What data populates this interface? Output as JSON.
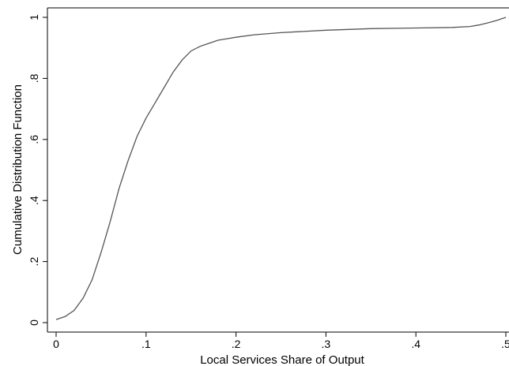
{
  "chart_data": {
    "type": "line",
    "title": "",
    "xlabel": "Local Services Share of Output",
    "ylabel": "Cumulative Distribution Function",
    "xlim": [
      0,
      0.5
    ],
    "ylim": [
      0,
      1
    ],
    "xticks": [
      0,
      0.1,
      0.2,
      0.3,
      0.4,
      0.5
    ],
    "xtick_labels": [
      "0",
      ".1",
      ".2",
      ".3",
      ".4",
      ".5"
    ],
    "yticks": [
      0,
      0.2,
      0.4,
      0.6,
      0.8,
      1
    ],
    "ytick_labels": [
      "0",
      ".2",
      ".4",
      ".6",
      ".8",
      "1"
    ],
    "grid": false,
    "series": [
      {
        "color": "#555555",
        "x": [
          0.0,
          0.01,
          0.02,
          0.03,
          0.04,
          0.05,
          0.06,
          0.07,
          0.08,
          0.09,
          0.1,
          0.11,
          0.12,
          0.13,
          0.14,
          0.15,
          0.16,
          0.17,
          0.18,
          0.19,
          0.2,
          0.22,
          0.25,
          0.3,
          0.35,
          0.4,
          0.44,
          0.46,
          0.47,
          0.48,
          0.49,
          0.5
        ],
        "y": [
          0.01,
          0.02,
          0.04,
          0.08,
          0.14,
          0.23,
          0.33,
          0.44,
          0.53,
          0.61,
          0.67,
          0.72,
          0.77,
          0.82,
          0.86,
          0.89,
          0.905,
          0.915,
          0.925,
          0.93,
          0.935,
          0.943,
          0.95,
          0.958,
          0.963,
          0.965,
          0.967,
          0.97,
          0.975,
          0.982,
          0.99,
          1.0
        ]
      }
    ]
  }
}
